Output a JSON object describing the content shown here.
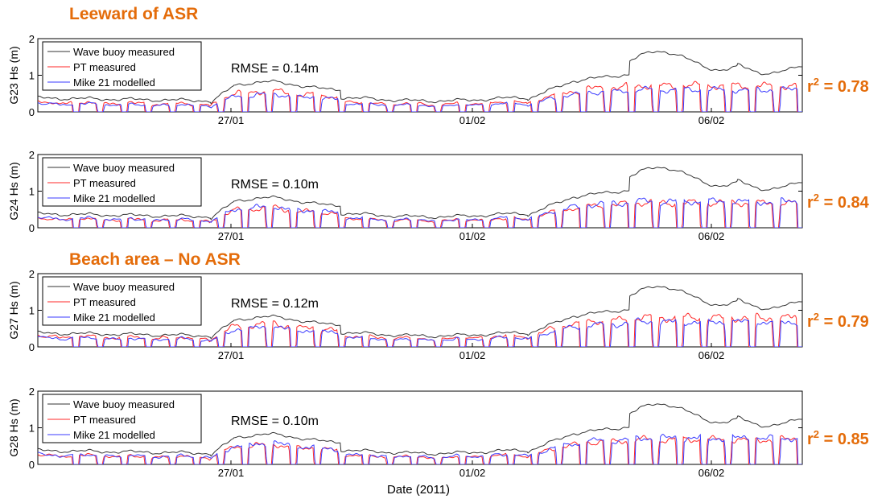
{
  "colors": {
    "accent": "#E46C0A",
    "wave_buoy": "#333333",
    "pt": "#FF2A2A",
    "mike": "#3B3BFF"
  },
  "headings": {
    "leeward": "Leeward of ASR",
    "beach": "Beach area – No ASR"
  },
  "xlabel": "Date (2011)",
  "chart_data": [
    {
      "type": "line",
      "gauge": "G23",
      "ylabel": "G23 Hs (m)",
      "ylim": [
        0,
        2
      ],
      "yticks": [
        "0",
        "1",
        "2"
      ],
      "xticks": [
        "27/01",
        "01/02",
        "06/02"
      ],
      "rmse": "RMSE = 0.14m",
      "r2_label": "r",
      "r2_sup": "2",
      "r2_value": " = 0.78",
      "legend": [
        "Wave buoy measured",
        "PT measured",
        "Mike 21 modelled"
      ],
      "pt_gain": 0.95,
      "mike_gain": 0.8
    },
    {
      "type": "line",
      "gauge": "G24",
      "ylabel": "G24 Hs (m)",
      "ylim": [
        0,
        2
      ],
      "yticks": [
        "0",
        "1",
        "2"
      ],
      "xticks": [
        "27/01",
        "01/02",
        "06/02"
      ],
      "rmse": "RMSE = 0.10m",
      "r2_label": "r",
      "r2_sup": "2",
      "r2_value": " = 0.84",
      "legend": [
        "Wave buoy measured",
        "PT measured",
        "Mike 21 modelled"
      ],
      "pt_gain": 0.9,
      "mike_gain": 0.95
    },
    {
      "type": "line",
      "gauge": "G27",
      "ylabel": "G27 Hs (m)",
      "ylim": [
        0,
        2
      ],
      "yticks": [
        "0",
        "1",
        "2"
      ],
      "xticks": [
        "27/01",
        "01/02",
        "06/02"
      ],
      "rmse": "RMSE = 0.12m",
      "r2_label": "r",
      "r2_sup": "2",
      "r2_value": " = 0.79",
      "legend": [
        "Wave buoy measured",
        "PT measured",
        "Mike 21 modelled"
      ],
      "pt_gain": 1.05,
      "mike_gain": 0.9
    },
    {
      "type": "line",
      "gauge": "G28",
      "ylabel": "G28 Hs (m)",
      "ylim": [
        0,
        2
      ],
      "yticks": [
        "0",
        "1",
        "2"
      ],
      "xticks": [
        "27/01",
        "01/02",
        "06/02"
      ],
      "rmse": "RMSE = 0.10m",
      "r2_label": "r",
      "r2_sup": "2",
      "r2_value": " = 0.85",
      "legend": [
        "Wave buoy measured",
        "PT measured",
        "Mike 21 modelled"
      ],
      "pt_gain": 0.9,
      "mike_gain": 0.95
    }
  ]
}
